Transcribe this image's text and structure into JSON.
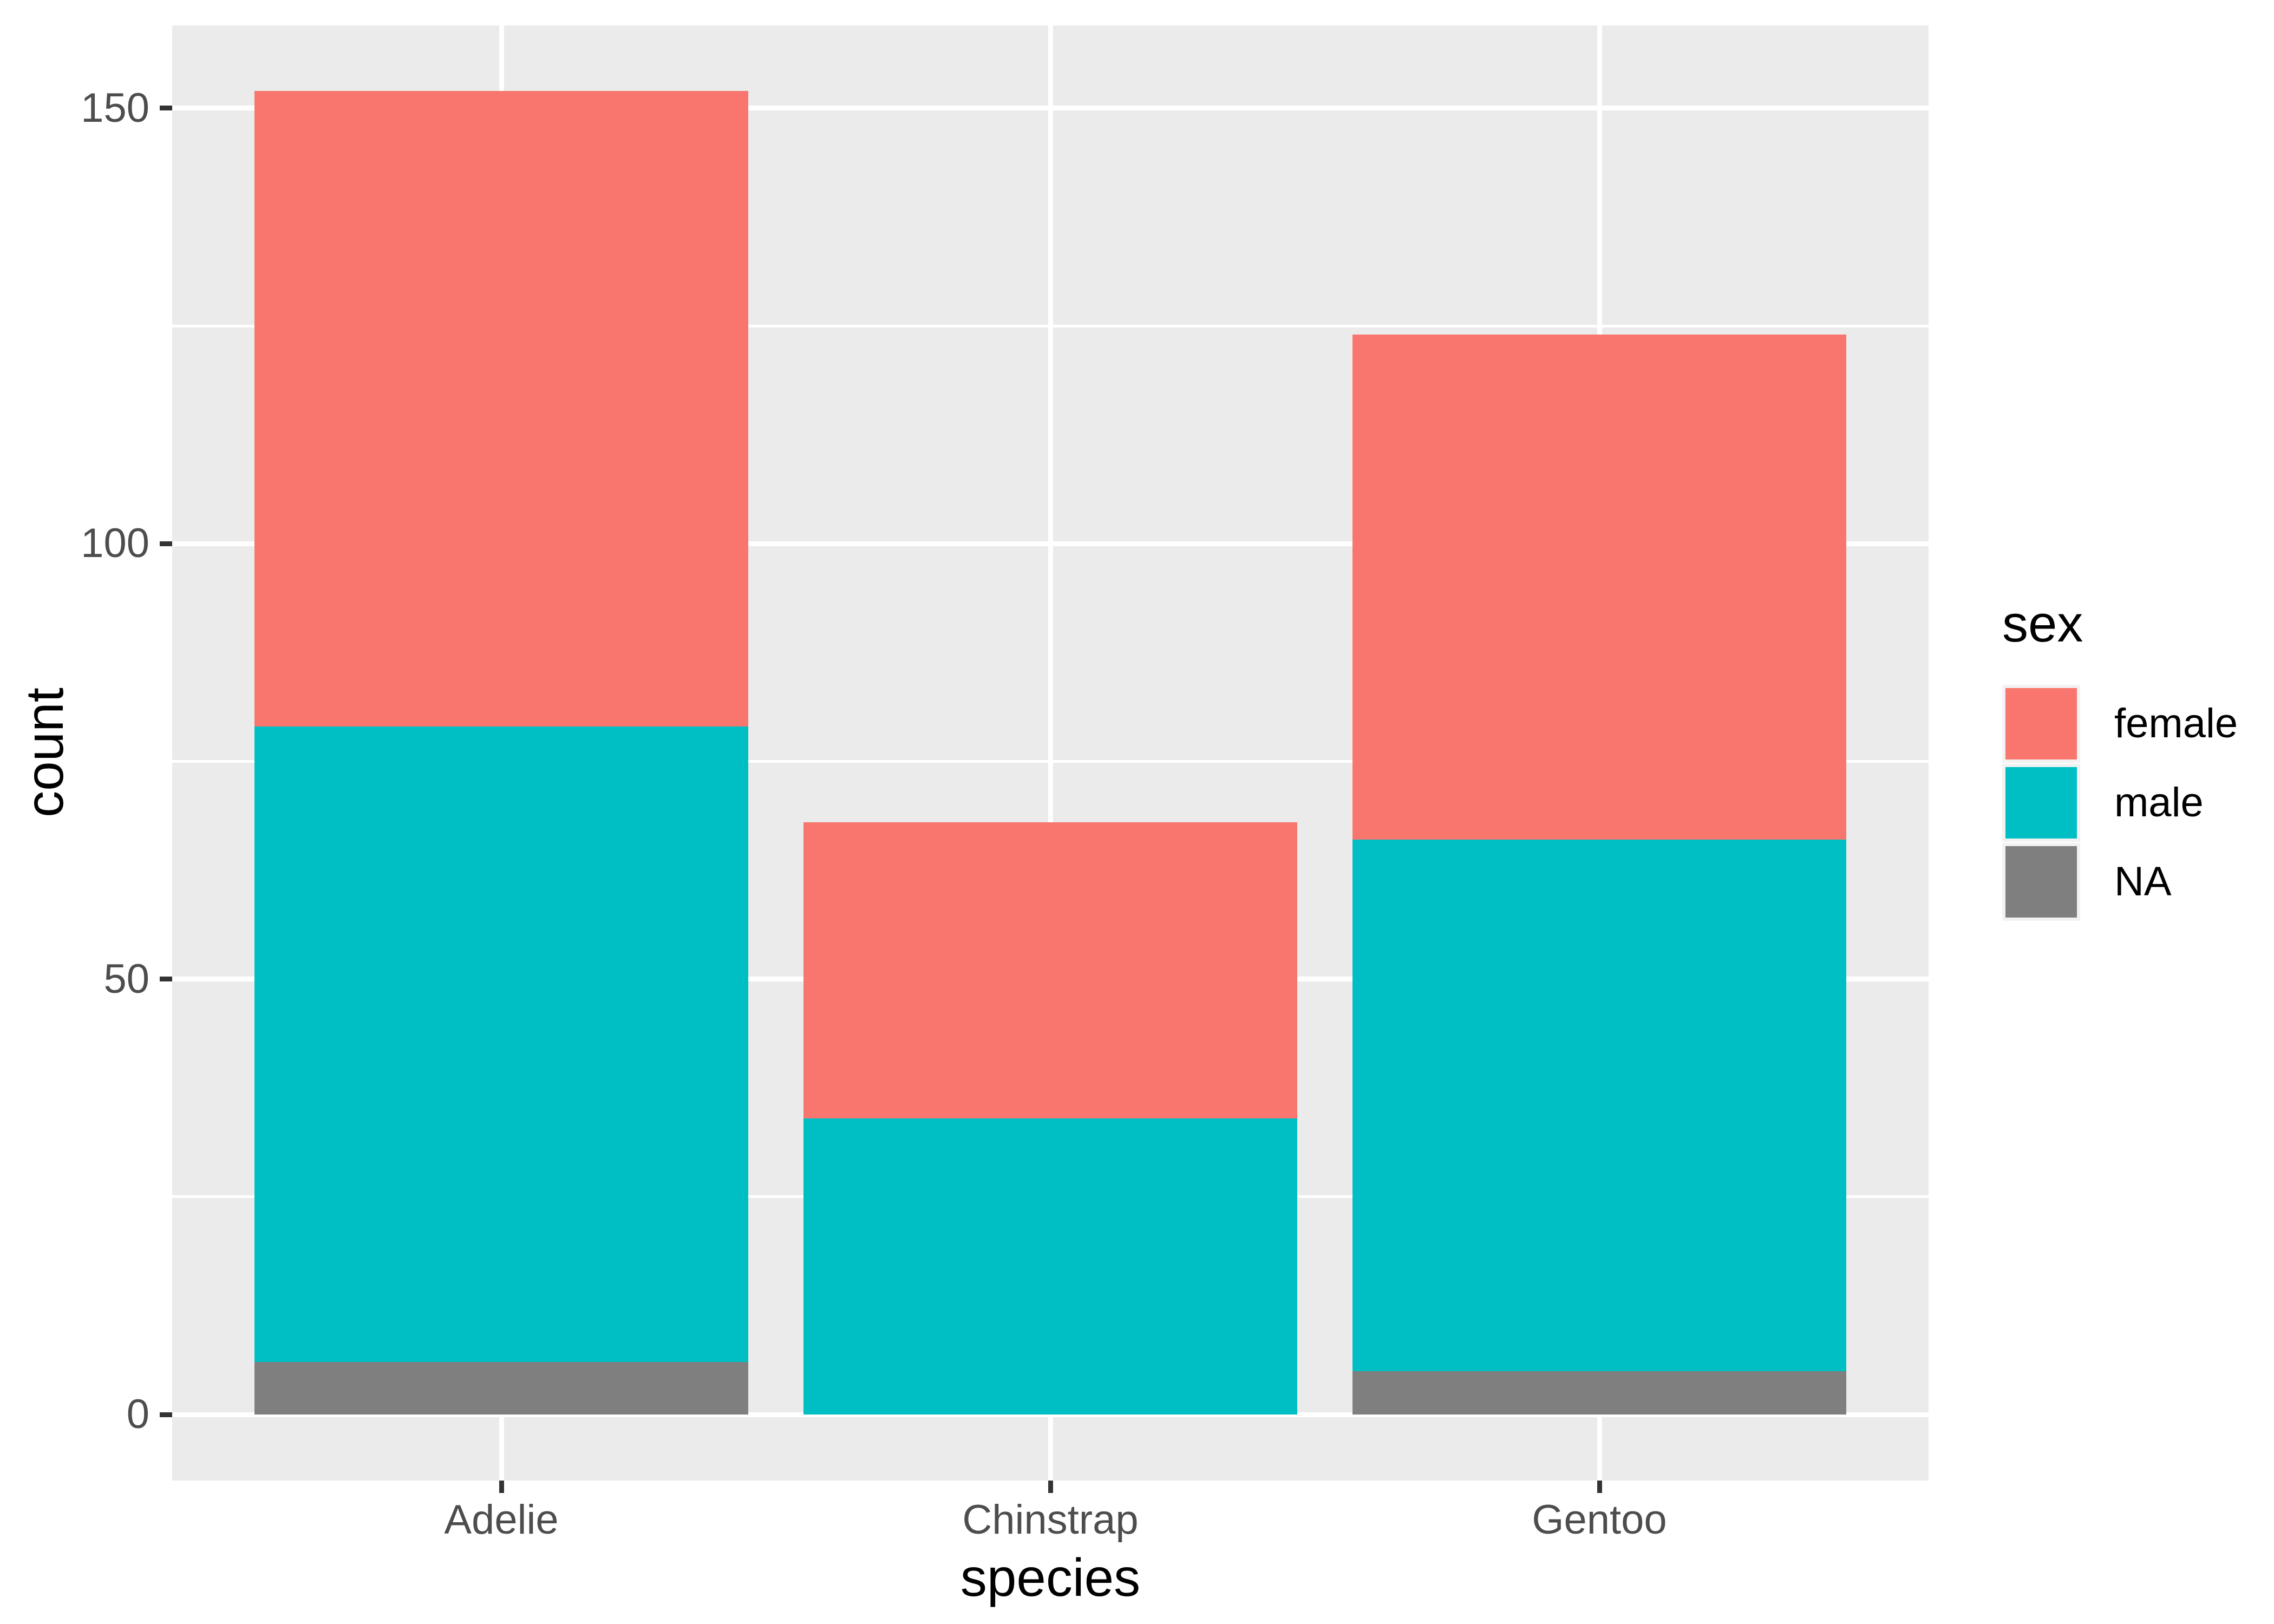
{
  "chart_data": {
    "type": "bar",
    "stacked": true,
    "categories": [
      "Adelie",
      "Chinstrap",
      "Gentoo"
    ],
    "series": [
      {
        "name": "female",
        "color": "#F8766D",
        "values": [
          73,
          34,
          58
        ]
      },
      {
        "name": "male",
        "color": "#00BFC4",
        "values": [
          73,
          34,
          61
        ]
      },
      {
        "name": "NA",
        "color": "#7F7F7F",
        "values": [
          6,
          0,
          5
        ]
      }
    ],
    "stack_order_bottom_to_top": [
      "NA",
      "male",
      "female"
    ],
    "totals": [
      152,
      68,
      124
    ],
    "title": "",
    "xlabel": "species",
    "ylabel": "count",
    "y_axis": {
      "major_ticks": [
        0,
        50,
        100,
        150
      ],
      "minor_ticks": [
        25,
        75,
        125
      ],
      "shown_range": [
        -7.6,
        159.6
      ]
    },
    "legend_position": "right",
    "grid": true
  },
  "legend": {
    "title": "sex",
    "items": [
      {
        "label": "female",
        "color": "#F8766D"
      },
      {
        "label": "male",
        "color": "#00BFC4"
      },
      {
        "label": "NA",
        "color": "#7F7F7F"
      }
    ]
  },
  "style_colors": {
    "panel_background": "#EBEBEB",
    "gridline": "#FFFFFF",
    "tick_mark": "#333333",
    "tick_label": "#4D4D4D",
    "axis_title": "#000000",
    "legend_key_background": "#F2F2F2"
  }
}
